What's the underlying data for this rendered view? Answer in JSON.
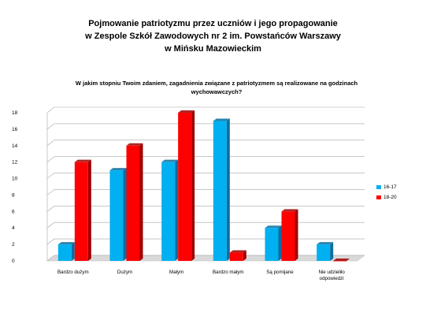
{
  "slide": {
    "title_lines": [
      "Pojmowanie  patriotyzmu  przez uczniów  i jego propagowanie",
      "w Zespole Szkół Zawodowych nr 2 im. Powstańców  Warszawy",
      "w Mińsku Mazowieckim"
    ]
  },
  "chart_data": {
    "type": "bar",
    "title_lines": [
      "W jakim stopniu Twoim zdaniem, zagadnienia związane z patriotyzmem są realizowane na godzinach",
      "wychowawczych?"
    ],
    "categories": [
      "Bardzo dużym",
      "Dużym",
      "Małym",
      "Bardzo małym",
      "Są pomijane",
      "Nie udzieliło\nodpowiedzi"
    ],
    "series": [
      {
        "name": "16-17",
        "values": [
          2,
          11,
          12,
          17,
          4,
          2
        ],
        "color": "#00b0f0",
        "side_color": "#0a6ea0"
      },
      {
        "name": "18-20",
        "values": [
          12,
          14,
          18,
          1,
          6,
          0
        ],
        "color": "#ff0000",
        "side_color": "#a00000"
      }
    ],
    "ylim": [
      0,
      18
    ],
    "yticks": [
      0,
      2,
      4,
      6,
      8,
      10,
      12,
      14,
      16,
      18
    ],
    "grid": true,
    "legend_position": "right",
    "chart_style": "3d-clustered-column"
  }
}
